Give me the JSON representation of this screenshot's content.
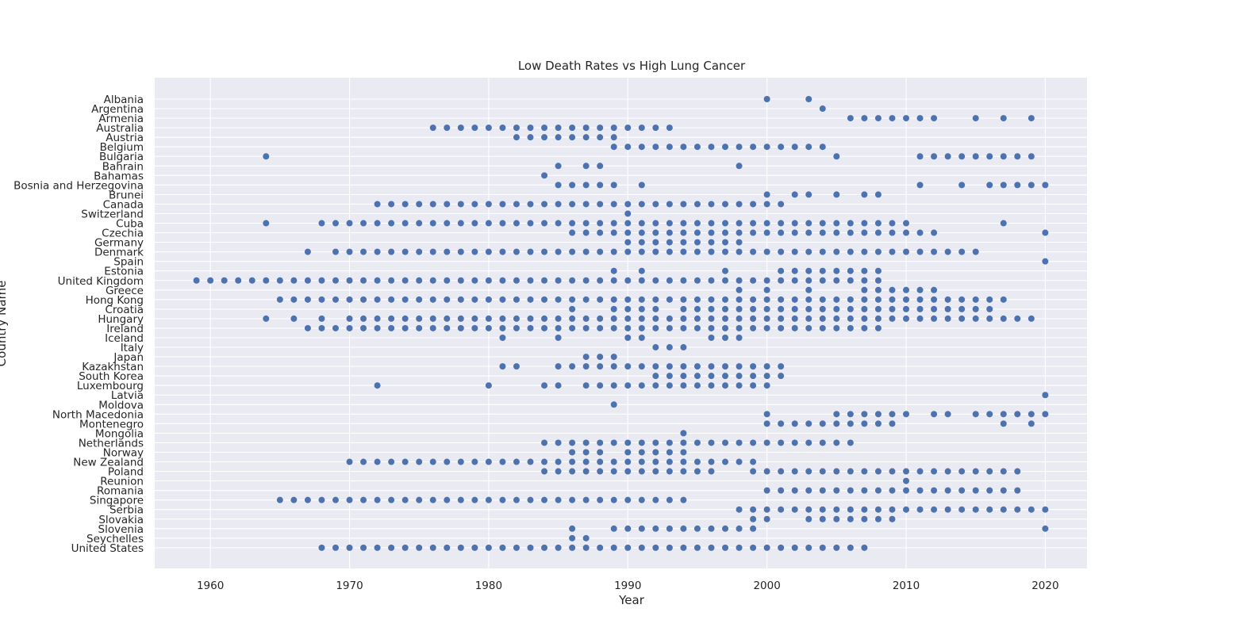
{
  "chart_data": {
    "type": "scatter",
    "title": "Low Death Rates vs High Lung Cancer",
    "xlabel": "Year",
    "ylabel": "Country Name",
    "xlim": [
      1956,
      2023
    ],
    "xticks": [
      1960,
      1970,
      1980,
      1990,
      2000,
      2010,
      2020
    ],
    "grid": true,
    "marker_color": "#4c72b0",
    "background_color": "#eaeaf2",
    "categories": [
      "Albania",
      "Argentina",
      "Armenia",
      "Australia",
      "Austria",
      "Belgium",
      "Bulgaria",
      "Bahrain",
      "Bahamas",
      "Bosnia and Herzegovina",
      "Brunei",
      "Canada",
      "Switzerland",
      "Cuba",
      "Czechia",
      "Germany",
      "Denmark",
      "Spain",
      "Estonia",
      "United Kingdom",
      "Greece",
      "Hong Kong",
      "Croatia",
      "Hungary",
      "Ireland",
      "Iceland",
      "Italy",
      "Japan",
      "Kazakhstan",
      "South Korea",
      "Luxembourg",
      "Latvia",
      "Moldova",
      "North Macedonia",
      "Montenegro",
      "Mongolia",
      "Netherlands",
      "Norway",
      "New Zealand",
      "Poland",
      "Reunion",
      "Romania",
      "Singapore",
      "Serbia",
      "Slovakia",
      "Slovenia",
      "Seychelles",
      "United States"
    ],
    "series": [
      {
        "country": "Albania",
        "years": [
          2000,
          2003
        ]
      },
      {
        "country": "Argentina",
        "years": [
          2004
        ]
      },
      {
        "country": "Armenia",
        "years": [
          2006,
          2007,
          2008,
          2009,
          2010,
          2011,
          2012,
          2015,
          2017,
          2019
        ]
      },
      {
        "country": "Australia",
        "years": [
          1976,
          1977,
          1978,
          1979,
          1980,
          1981,
          1982,
          1983,
          1984,
          1985,
          1986,
          1987,
          1988,
          1989,
          1990,
          1991,
          1992,
          1993
        ]
      },
      {
        "country": "Austria",
        "years": [
          1982,
          1983,
          1984,
          1985,
          1986,
          1987,
          1988,
          1989
        ]
      },
      {
        "country": "Belgium",
        "years": [
          1989,
          1990,
          1991,
          1992,
          1993,
          1994,
          1995,
          1996,
          1997,
          1998,
          1999,
          2000,
          2001,
          2002,
          2003,
          2004
        ]
      },
      {
        "country": "Bulgaria",
        "years": [
          1964,
          2005,
          2011,
          2012,
          2013,
          2014,
          2015,
          2016,
          2017,
          2018,
          2019
        ]
      },
      {
        "country": "Bahrain",
        "years": [
          1985,
          1987,
          1988,
          1998
        ]
      },
      {
        "country": "Bahamas",
        "years": [
          1984
        ]
      },
      {
        "country": "Bosnia and Herzegovina",
        "years": [
          1985,
          1986,
          1987,
          1988,
          1989,
          1991,
          2011,
          2014,
          2016,
          2017,
          2018,
          2019,
          2020
        ]
      },
      {
        "country": "Brunei",
        "years": [
          2000,
          2002,
          2003,
          2005,
          2007,
          2008
        ]
      },
      {
        "country": "Canada",
        "years": [
          1972,
          1973,
          1974,
          1975,
          1976,
          1977,
          1978,
          1979,
          1980,
          1981,
          1982,
          1983,
          1984,
          1985,
          1986,
          1987,
          1988,
          1989,
          1990,
          1991,
          1992,
          1993,
          1994,
          1995,
          1996,
          1997,
          1998,
          1999,
          2000,
          2001
        ]
      },
      {
        "country": "Switzerland",
        "years": [
          1990
        ]
      },
      {
        "country": "Cuba",
        "years": [
          1964,
          1968,
          1969,
          1970,
          1971,
          1972,
          1973,
          1974,
          1975,
          1976,
          1977,
          1978,
          1979,
          1980,
          1981,
          1982,
          1983,
          1984,
          1985,
          1986,
          1987,
          1988,
          1989,
          1990,
          1991,
          1992,
          1993,
          1994,
          1995,
          1996,
          1997,
          1998,
          1999,
          2000,
          2001,
          2002,
          2003,
          2004,
          2005,
          2006,
          2007,
          2008,
          2009,
          2010,
          2017
        ]
      },
      {
        "country": "Czechia",
        "years": [
          1986,
          1987,
          1988,
          1989,
          1990,
          1991,
          1992,
          1993,
          1994,
          1995,
          1996,
          1997,
          1998,
          1999,
          2000,
          2001,
          2002,
          2003,
          2004,
          2005,
          2006,
          2007,
          2008,
          2009,
          2010,
          2011,
          2012,
          2020
        ]
      },
      {
        "country": "Germany",
        "years": [
          1990,
          1991,
          1992,
          1993,
          1994,
          1995,
          1996,
          1997,
          1998
        ]
      },
      {
        "country": "Denmark",
        "years": [
          1967,
          1969,
          1970,
          1971,
          1972,
          1973,
          1974,
          1975,
          1976,
          1977,
          1978,
          1979,
          1980,
          1981,
          1982,
          1983,
          1984,
          1985,
          1986,
          1987,
          1988,
          1989,
          1990,
          1991,
          1992,
          1993,
          1994,
          1995,
          1996,
          1997,
          1998,
          1999,
          2000,
          2001,
          2002,
          2003,
          2004,
          2005,
          2006,
          2007,
          2008,
          2009,
          2010,
          2011,
          2012,
          2013,
          2014,
          2015
        ]
      },
      {
        "country": "Spain",
        "years": [
          2020
        ]
      },
      {
        "country": "Estonia",
        "years": [
          1989,
          1991,
          1997,
          2001,
          2002,
          2003,
          2004,
          2005,
          2006,
          2007,
          2008
        ]
      },
      {
        "country": "United Kingdom",
        "years": [
          1959,
          1960,
          1961,
          1962,
          1963,
          1964,
          1965,
          1966,
          1967,
          1968,
          1969,
          1970,
          1971,
          1972,
          1973,
          1974,
          1975,
          1976,
          1977,
          1978,
          1979,
          1980,
          1981,
          1982,
          1983,
          1984,
          1985,
          1986,
          1987,
          1988,
          1989,
          1990,
          1991,
          1992,
          1993,
          1994,
          1995,
          1996,
          1997,
          1998,
          1999,
          2000,
          2001,
          2002,
          2003,
          2004,
          2005,
          2006,
          2007,
          2008
        ]
      },
      {
        "country": "Greece",
        "years": [
          1998,
          2000,
          2003,
          2007,
          2008,
          2009,
          2010,
          2011,
          2012
        ]
      },
      {
        "country": "Hong Kong",
        "years": [
          1965,
          1966,
          1967,
          1968,
          1969,
          1970,
          1971,
          1972,
          1973,
          1974,
          1975,
          1976,
          1977,
          1978,
          1979,
          1980,
          1981,
          1982,
          1983,
          1984,
          1985,
          1986,
          1987,
          1988,
          1989,
          1990,
          1991,
          1992,
          1993,
          1994,
          1995,
          1996,
          1997,
          1998,
          1999,
          2000,
          2001,
          2002,
          2003,
          2004,
          2005,
          2006,
          2007,
          2008,
          2009,
          2010,
          2011,
          2012,
          2013,
          2014,
          2015,
          2016,
          2017
        ]
      },
      {
        "country": "Croatia",
        "years": [
          1986,
          1989,
          1990,
          1991,
          1992,
          1994,
          1995,
          1996,
          1997,
          1998,
          1999,
          2000,
          2001,
          2002,
          2003,
          2004,
          2005,
          2006,
          2007,
          2008,
          2009,
          2010,
          2011,
          2012,
          2013,
          2014,
          2015,
          2016
        ]
      },
      {
        "country": "Hungary",
        "years": [
          1964,
          1966,
          1968,
          1970,
          1971,
          1972,
          1973,
          1974,
          1975,
          1976,
          1977,
          1978,
          1979,
          1980,
          1981,
          1982,
          1983,
          1984,
          1985,
          1986,
          1987,
          1988,
          1989,
          1990,
          1991,
          1992,
          1993,
          1994,
          1995,
          1996,
          1997,
          1998,
          1999,
          2000,
          2001,
          2002,
          2003,
          2004,
          2005,
          2006,
          2007,
          2008,
          2009,
          2010,
          2011,
          2012,
          2013,
          2014,
          2015,
          2016,
          2017,
          2018,
          2019
        ]
      },
      {
        "country": "Ireland",
        "years": [
          1967,
          1968,
          1969,
          1970,
          1971,
          1972,
          1973,
          1974,
          1975,
          1976,
          1977,
          1978,
          1979,
          1980,
          1981,
          1982,
          1983,
          1984,
          1985,
          1986,
          1987,
          1988,
          1989,
          1990,
          1991,
          1992,
          1993,
          1994,
          1995,
          1996,
          1997,
          1998,
          1999,
          2000,
          2001,
          2002,
          2003,
          2004,
          2005,
          2006,
          2007,
          2008
        ]
      },
      {
        "country": "Iceland",
        "years": [
          1981,
          1985,
          1990,
          1991,
          1996,
          1997,
          1998
        ]
      },
      {
        "country": "Italy",
        "years": [
          1992,
          1993,
          1994
        ]
      },
      {
        "country": "Japan",
        "years": [
          1987,
          1988,
          1989
        ]
      },
      {
        "country": "Kazakhstan",
        "years": [
          1981,
          1982,
          1985,
          1986,
          1987,
          1988,
          1989,
          1990,
          1991,
          1992,
          1993,
          1994,
          1995,
          1996,
          1997,
          1998,
          1999,
          2000,
          2001
        ]
      },
      {
        "country": "South Korea",
        "years": [
          1992,
          1993,
          1994,
          1995,
          1996,
          1997,
          1998,
          1999,
          2000,
          2001
        ]
      },
      {
        "country": "Luxembourg",
        "years": [
          1972,
          1980,
          1984,
          1985,
          1987,
          1988,
          1989,
          1990,
          1991,
          1992,
          1993,
          1994,
          1995,
          1996,
          1997,
          1998,
          1999,
          2000
        ]
      },
      {
        "country": "Latvia",
        "years": [
          2020
        ]
      },
      {
        "country": "Moldova",
        "years": [
          1989
        ]
      },
      {
        "country": "North Macedonia",
        "years": [
          2000,
          2005,
          2006,
          2007,
          2008,
          2009,
          2010,
          2012,
          2013,
          2015,
          2016,
          2017,
          2018,
          2019,
          2020
        ]
      },
      {
        "country": "Montenegro",
        "years": [
          2000,
          2001,
          2002,
          2003,
          2004,
          2005,
          2006,
          2007,
          2008,
          2009,
          2017,
          2019
        ]
      },
      {
        "country": "Mongolia",
        "years": [
          1994
        ]
      },
      {
        "country": "Netherlands",
        "years": [
          1984,
          1985,
          1986,
          1987,
          1988,
          1989,
          1990,
          1991,
          1992,
          1993,
          1994,
          1995,
          1996,
          1997,
          1998,
          1999,
          2000,
          2001,
          2002,
          2003,
          2004,
          2005,
          2006
        ]
      },
      {
        "country": "Norway",
        "years": [
          1986,
          1987,
          1988,
          1990,
          1991,
          1992,
          1993,
          1994
        ]
      },
      {
        "country": "New Zealand",
        "years": [
          1970,
          1971,
          1972,
          1973,
          1974,
          1975,
          1976,
          1977,
          1978,
          1979,
          1980,
          1981,
          1982,
          1983,
          1984,
          1985,
          1986,
          1987,
          1988,
          1989,
          1990,
          1991,
          1992,
          1993,
          1994,
          1995,
          1996,
          1997,
          1998,
          1999
        ]
      },
      {
        "country": "Poland",
        "years": [
          1984,
          1985,
          1986,
          1987,
          1988,
          1989,
          1990,
          1991,
          1992,
          1993,
          1994,
          1995,
          1996,
          1999,
          2000,
          2001,
          2002,
          2003,
          2004,
          2005,
          2006,
          2007,
          2008,
          2009,
          2010,
          2011,
          2012,
          2013,
          2014,
          2015,
          2016,
          2017,
          2018
        ]
      },
      {
        "country": "Reunion",
        "years": [
          2010
        ]
      },
      {
        "country": "Romania",
        "years": [
          2000,
          2001,
          2002,
          2003,
          2004,
          2005,
          2006,
          2007,
          2008,
          2009,
          2010,
          2011,
          2012,
          2013,
          2014,
          2015,
          2016,
          2017,
          2018
        ]
      },
      {
        "country": "Singapore",
        "years": [
          1965,
          1966,
          1967,
          1968,
          1969,
          1970,
          1971,
          1972,
          1973,
          1974,
          1975,
          1976,
          1977,
          1978,
          1979,
          1980,
          1981,
          1982,
          1983,
          1984,
          1985,
          1986,
          1987,
          1988,
          1989,
          1990,
          1991,
          1992,
          1993,
          1994
        ]
      },
      {
        "country": "Serbia",
        "years": [
          1998,
          1999,
          2000,
          2001,
          2002,
          2003,
          2004,
          2005,
          2006,
          2007,
          2008,
          2009,
          2010,
          2011,
          2012,
          2013,
          2014,
          2015,
          2016,
          2017,
          2018,
          2019,
          2020
        ]
      },
      {
        "country": "Slovakia",
        "years": [
          1999,
          2000,
          2003,
          2004,
          2005,
          2006,
          2007,
          2008,
          2009
        ]
      },
      {
        "country": "Slovenia",
        "years": [
          1986,
          1989,
          1990,
          1991,
          1992,
          1993,
          1994,
          1995,
          1996,
          1997,
          1998,
          1999,
          2020
        ]
      },
      {
        "country": "Seychelles",
        "years": [
          1986,
          1987
        ]
      },
      {
        "country": "United States",
        "years": [
          1968,
          1969,
          1970,
          1971,
          1972,
          1973,
          1974,
          1975,
          1976,
          1977,
          1978,
          1979,
          1980,
          1981,
          1982,
          1983,
          1984,
          1985,
          1986,
          1987,
          1988,
          1989,
          1990,
          1991,
          1992,
          1993,
          1994,
          1995,
          1996,
          1997,
          1998,
          1999,
          2000,
          2001,
          2002,
          2003,
          2004,
          2005,
          2006,
          2007
        ]
      }
    ]
  }
}
